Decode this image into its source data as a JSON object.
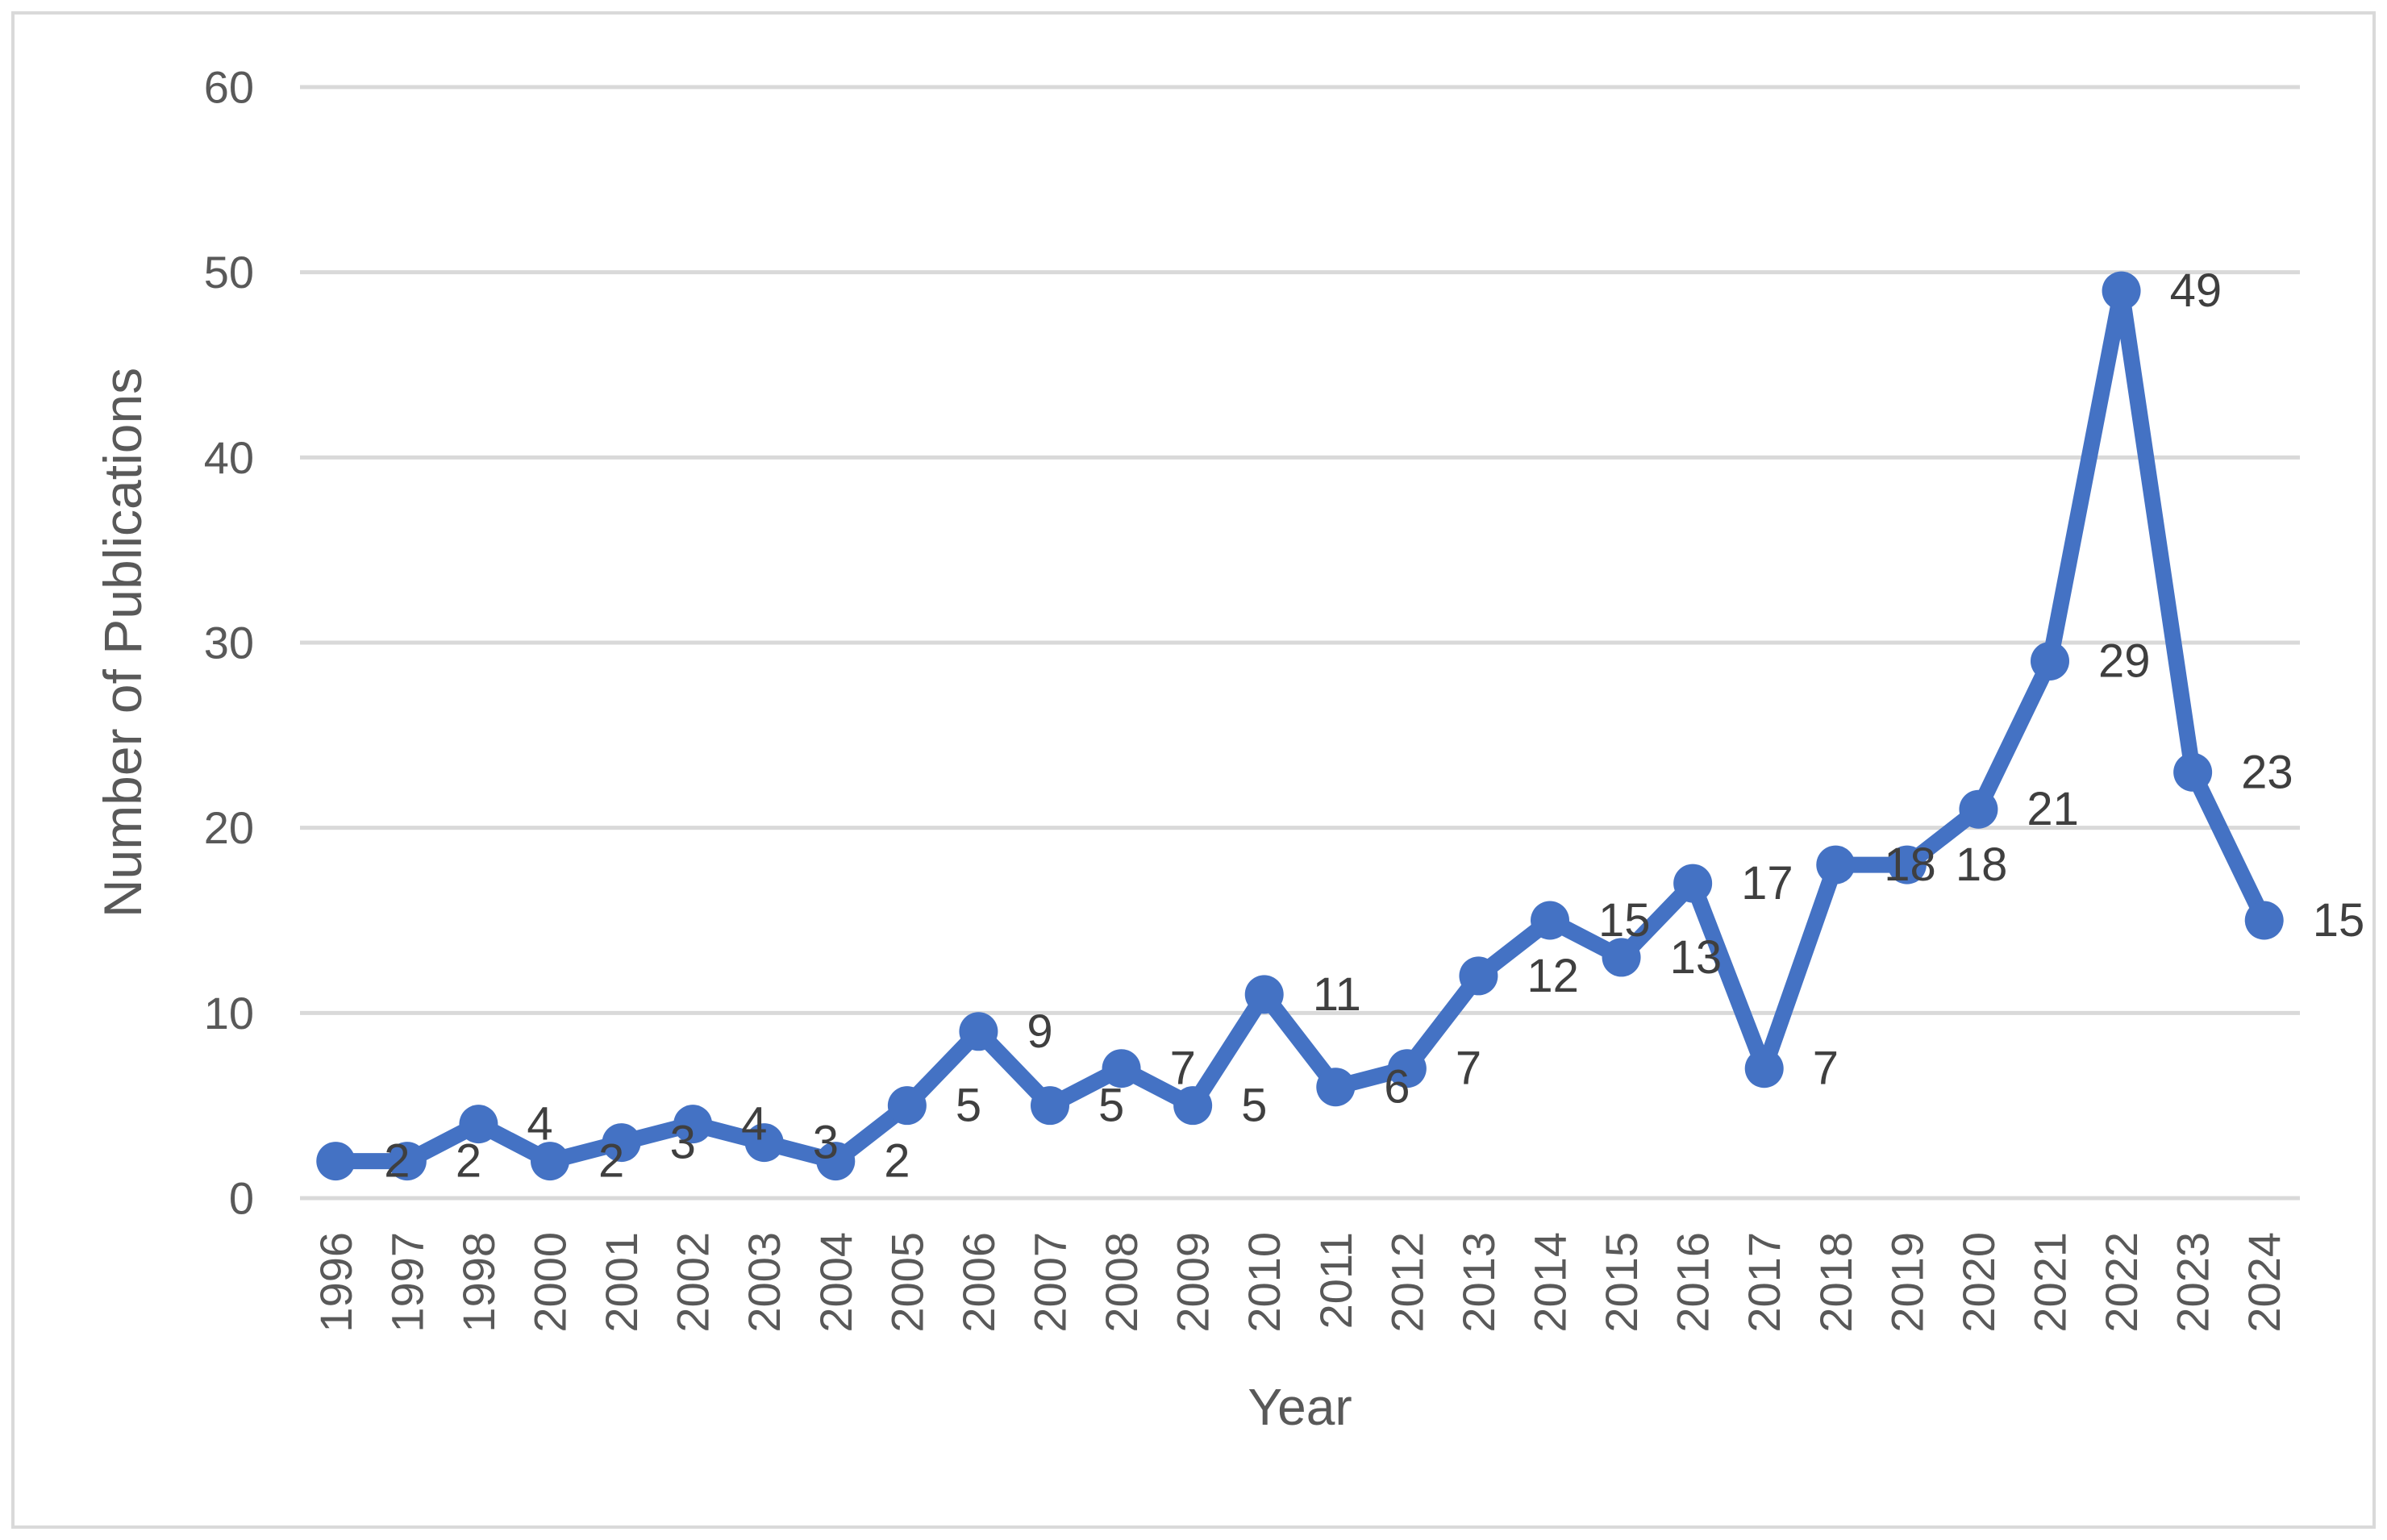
{
  "chart_data": {
    "type": "line",
    "title": "",
    "xlabel": "Year",
    "ylabel": "Number of Publications",
    "categories": [
      "1996",
      "1997",
      "1998",
      "2000",
      "2001",
      "2002",
      "2003",
      "2004",
      "2005",
      "2006",
      "2007",
      "2008",
      "2009",
      "2010",
      "2011",
      "2012",
      "2013",
      "2014",
      "2015",
      "2016",
      "2017",
      "2018",
      "2019",
      "2020",
      "2021",
      "2022",
      "2023",
      "2024"
    ],
    "values": [
      2,
      2,
      4,
      2,
      3,
      4,
      3,
      2,
      5,
      9,
      5,
      7,
      5,
      11,
      6,
      7,
      12,
      15,
      13,
      17,
      7,
      18,
      18,
      21,
      29,
      49,
      23,
      15
    ],
    "y_ticks": [
      0,
      10,
      20,
      30,
      40,
      50,
      60
    ],
    "ylim": [
      0,
      60
    ],
    "grid": true,
    "legend_position": "none",
    "data_labels": true,
    "data_label_position": "right",
    "x_tick_rotation": "up"
  },
  "colors": {
    "series": "#4472C4",
    "gridline": "#D9D9D9",
    "axis_line": "#D9D9D9",
    "frame_border": "#D9D9D9",
    "tick_text": "#595959",
    "axis_title_text": "#595959",
    "data_label_text": "#3F3F3F",
    "background": "#FFFFFF"
  }
}
